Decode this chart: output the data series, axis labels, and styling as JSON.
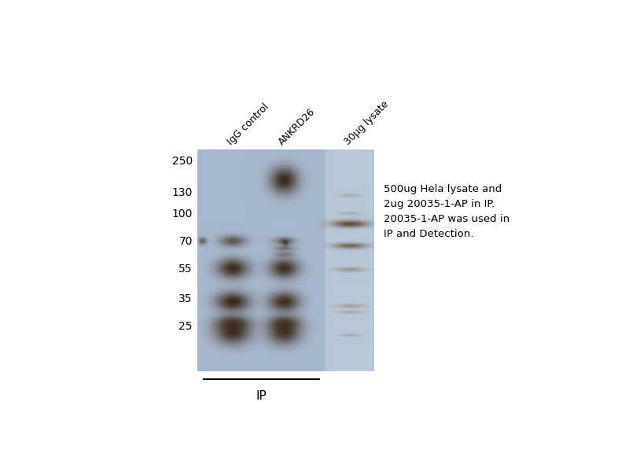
{
  "bg_color": "#ffffff",
  "gel_bg": [
    168,
    184,
    204
  ],
  "ladder_bg": [
    185,
    200,
    215
  ],
  "fig_w": 8.0,
  "fig_h": 6.0,
  "annotation_text": "500ug Hela lysate and\n2ug 20035-1-AP in IP.\n20035-1-AP was used in\nIP and Detection.",
  "mw_labels": [
    "250",
    "130",
    "100",
    "70",
    "55",
    "35",
    "25"
  ],
  "col_labels": [
    "IgG control",
    "ANKRD26",
    "30μg lysate"
  ]
}
